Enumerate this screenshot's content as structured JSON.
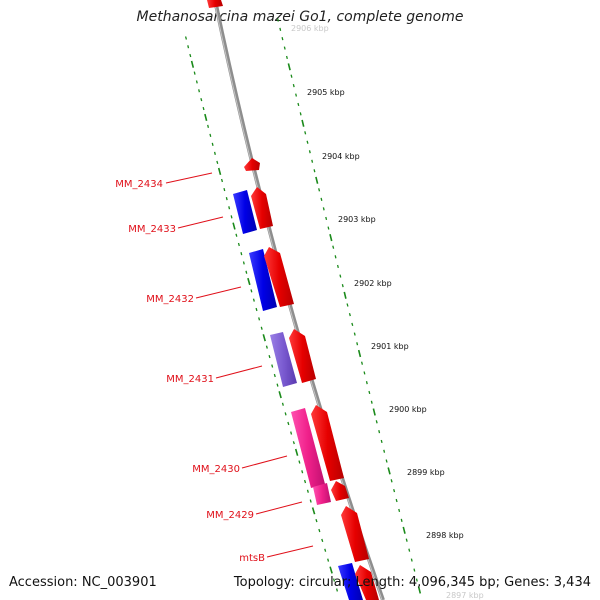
{
  "title": "Methanosarcina mazei Go1, complete genome",
  "footer": {
    "accession": "Accession: NC_003901",
    "topology": "Topology: circular; Length: 4,096,345 bp; Genes: 3,434"
  },
  "colors": {
    "backbone": "#8c8c8c",
    "tick": "#1a8a1a",
    "label": "#e0101a",
    "forward": "#f01010",
    "reverse": "#1010e8",
    "reverse_light": "#7a5ad0",
    "pink": "#f0208a",
    "faded_label": "#c8c8c8"
  },
  "kbp_labels": [
    "2906 kbp",
    "2905 kbp",
    "2904 kbp",
    "2903 kbp",
    "2902 kbp",
    "2901 kbp",
    "2900 kbp",
    "2899 kbp",
    "2898 kbp",
    "2897 kbp"
  ],
  "genes": [
    {
      "label": "MM_2434",
      "strand": "forward"
    },
    {
      "label": "MM_2433",
      "strand": "forward"
    },
    {
      "label": "MM_2432",
      "strand": "forward"
    },
    {
      "label": "MM_2431",
      "strand": "forward"
    },
    {
      "label": "MM_2430",
      "strand": "forward"
    },
    {
      "label": "MM_2429",
      "strand": "forward"
    },
    {
      "label": "mtsB",
      "strand": "forward"
    }
  ]
}
